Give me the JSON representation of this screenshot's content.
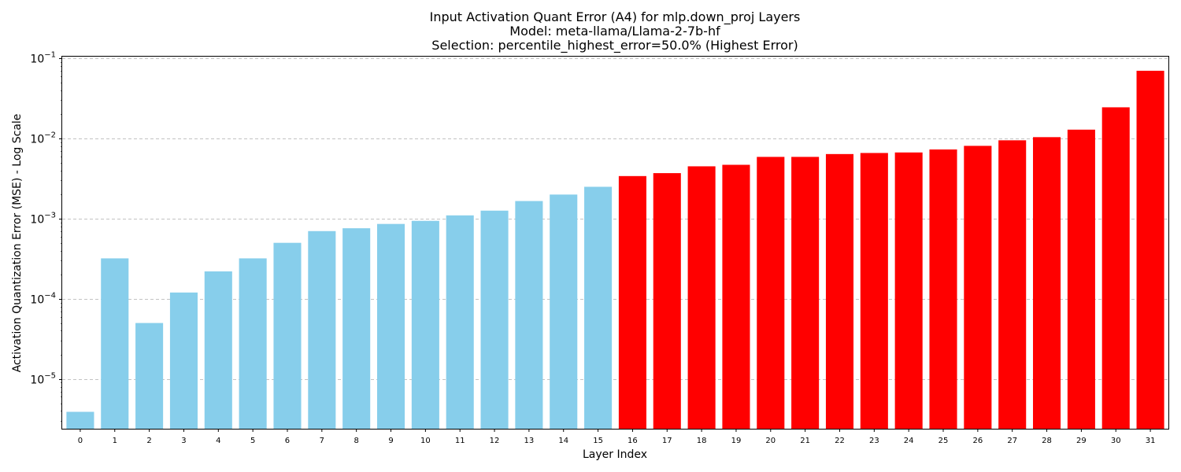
{
  "chart_data": {
    "type": "bar",
    "title_lines": [
      "Input Activation Quant Error (A4) for mlp.down_proj Layers",
      "Model: meta-llama/Llama-2-7b-hf",
      "Selection: percentile_highest_error=50.0% (Highest Error)"
    ],
    "xlabel": "Layer Index",
    "ylabel": "Activation Quantization Error (MSE) - Log Scale",
    "y_scale": "log",
    "ylim": [
      2.4e-06,
      0.105
    ],
    "grid": "y-dashed",
    "categories": [
      "0",
      "1",
      "2",
      "3",
      "4",
      "5",
      "6",
      "7",
      "8",
      "9",
      "10",
      "11",
      "12",
      "13",
      "14",
      "15",
      "16",
      "17",
      "18",
      "19",
      "20",
      "21",
      "22",
      "23",
      "24",
      "25",
      "26",
      "27",
      "28",
      "29",
      "30",
      "31"
    ],
    "values": [
      3.9e-06,
      0.00032,
      5e-05,
      0.00012,
      0.00022,
      0.00032,
      0.0005,
      0.0007,
      0.00076,
      0.00086,
      0.00094,
      0.0011,
      0.00126,
      0.00166,
      0.002,
      0.0025,
      0.0034,
      0.0037,
      0.0045,
      0.0047,
      0.0059,
      0.0059,
      0.0064,
      0.0066,
      0.0067,
      0.0073,
      0.0081,
      0.0095,
      0.0104,
      0.0129,
      0.0245,
      0.07
    ],
    "selected": [
      false,
      false,
      false,
      false,
      false,
      false,
      false,
      false,
      false,
      false,
      false,
      false,
      false,
      false,
      false,
      false,
      true,
      true,
      true,
      true,
      true,
      true,
      true,
      true,
      true,
      true,
      true,
      true,
      true,
      true,
      true,
      true
    ],
    "colors": {
      "normal": "#87ceeb",
      "selected": "#ff0000",
      "grid": "#b0b0b0",
      "axis": "#000000"
    },
    "yticks": [
      {
        "value": 1e-05,
        "base": "10",
        "exp": "−5"
      },
      {
        "value": 0.0001,
        "base": "10",
        "exp": "−4"
      },
      {
        "value": 0.001,
        "base": "10",
        "exp": "−3"
      },
      {
        "value": 0.01,
        "base": "10",
        "exp": "−2"
      },
      {
        "value": 0.1,
        "base": "10",
        "exp": "−1"
      }
    ]
  }
}
